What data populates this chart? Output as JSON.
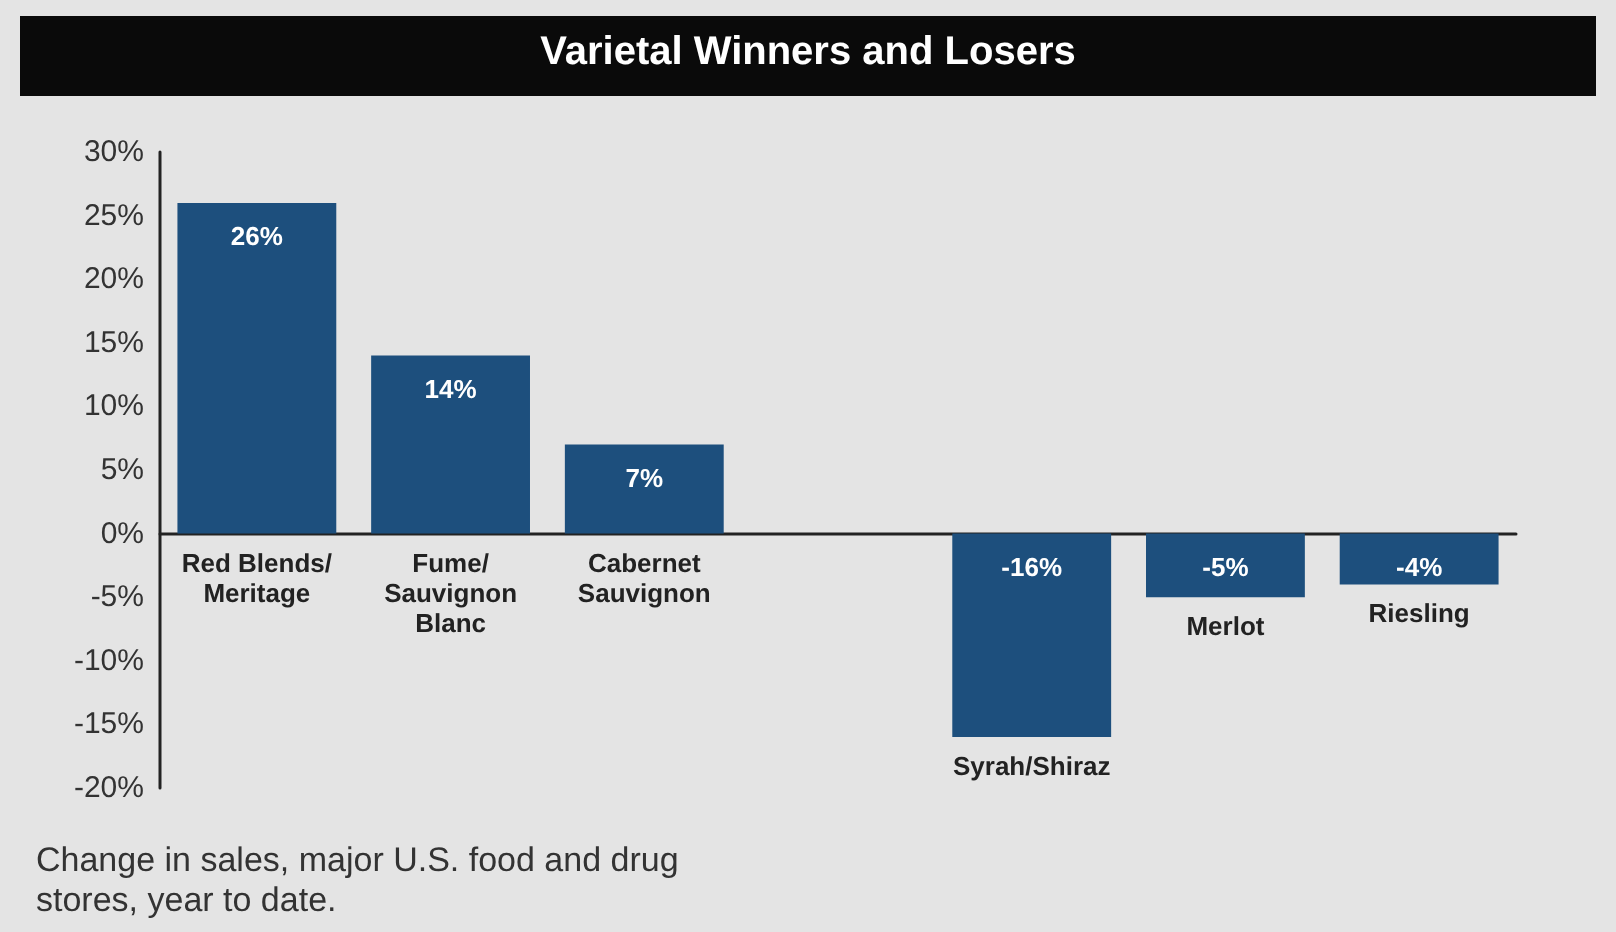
{
  "chart_data": {
    "type": "bar",
    "title": "Varietal Winners and Losers",
    "categories": [
      "Red Blends/\nMeritage",
      "Fume/\nSauvignon\nBlanc",
      "Cabernet\nSauvignon",
      null,
      "Syrah/Shiraz",
      "Merlot",
      "Riesling"
    ],
    "values": [
      26,
      14,
      7,
      null,
      -16,
      -5,
      -4
    ],
    "value_labels": [
      "26%",
      "14%",
      "7%",
      null,
      "-16%",
      "-5%",
      "-4%"
    ],
    "color": "#1d4f7d",
    "ylim": [
      -20,
      30
    ],
    "yticks": [
      {
        "value": -20,
        "label": "-20%"
      },
      {
        "value": -15,
        "label": "-15%"
      },
      {
        "value": -10,
        "label": "-10%"
      },
      {
        "value": -5,
        "label": "-5%"
      },
      {
        "value": 0,
        "label": "0%"
      },
      {
        "value": 5,
        "label": "5%"
      },
      {
        "value": 10,
        "label": "10%"
      },
      {
        "value": 15,
        "label": "15%"
      },
      {
        "value": 20,
        "label": "20%"
      },
      {
        "value": 25,
        "label": "25%"
      },
      {
        "value": 30,
        "label": "30%"
      }
    ],
    "grid": false,
    "annotations": [
      "Change in sales, major U.S. food and drug\nstores, year to date."
    ]
  }
}
